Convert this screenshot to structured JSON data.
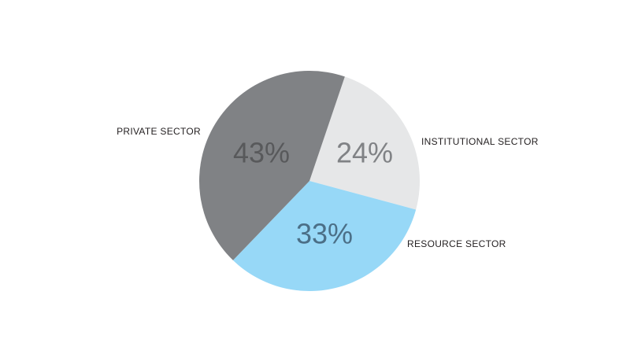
{
  "chart_data": {
    "type": "pie",
    "categories": [
      "INSTITUTIONAL SECTOR",
      "RESOURCE SECTOR",
      "PRIVATE SECTOR"
    ],
    "values": [
      24,
      33,
      43
    ],
    "value_labels": [
      "24%",
      "33%",
      "43%"
    ],
    "colors": [
      "#e6e7e8",
      "#97d8f7",
      "#808285"
    ]
  }
}
